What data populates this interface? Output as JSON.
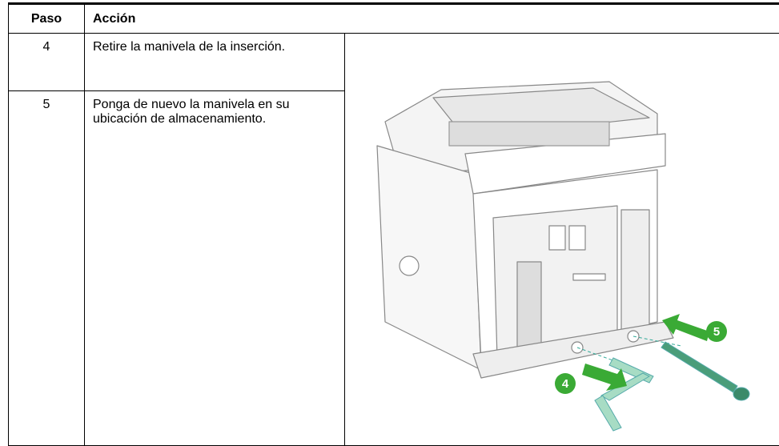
{
  "table": {
    "header": [
      "Paso",
      "Acción"
    ],
    "rows": [
      [
        "4",
        "Retire la manivela de la inserción."
      ],
      [
        "5",
        "Ponga de nuevo la manivela en su ubicación de almacenamiento."
      ]
    ]
  },
  "figure": {
    "callouts": [
      "4",
      "5"
    ]
  }
}
